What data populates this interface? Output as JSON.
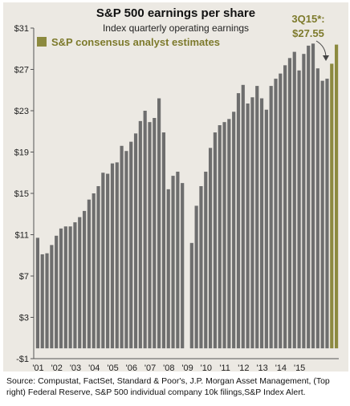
{
  "chart_data": {
    "type": "bar",
    "title": "S&P 500 earnings per share",
    "subtitle": "Index quarterly operating earnings",
    "legend": [
      {
        "label": "S&P consensus analyst estimates",
        "color": "#8c8a3f"
      }
    ],
    "annotation": {
      "line1": "3Q15*:",
      "line2": "$27.55"
    },
    "y_ticks": [
      "$31",
      "$27",
      "$23",
      "$19",
      "$15",
      "$11",
      "$7",
      "$3",
      "-$1"
    ],
    "y_tick_values": [
      31,
      27,
      23,
      19,
      15,
      11,
      7,
      3,
      -1
    ],
    "ylim": [
      -1,
      31
    ],
    "x_ticks": [
      "'01",
      "'02",
      "'03",
      "'04",
      "'05",
      "'06",
      "'07",
      "'08",
      "'09",
      "'10",
      "'11",
      "'12",
      "'13",
      "'14",
      "'15"
    ],
    "series": [
      {
        "values": [
          10.7,
          9.1,
          9.2,
          10.0,
          10.9,
          11.6,
          11.8,
          11.8,
          12.2,
          12.7,
          13.3,
          14.4,
          15.0,
          15.7,
          17.0,
          16.9,
          17.9,
          18.0,
          19.6,
          19.1,
          20.0,
          20.8,
          22.0,
          23.0,
          21.9,
          22.3,
          24.2,
          20.9,
          15.4,
          16.7,
          17.1,
          16.0,
          null,
          10.2,
          13.8,
          15.7,
          17.1,
          19.4,
          20.9,
          21.6,
          21.9,
          22.2,
          22.9,
          24.7,
          25.5,
          23.7,
          24.3,
          25.4,
          24.2,
          23.1,
          25.4,
          26.1,
          26.6,
          27.4,
          28.1,
          28.7,
          26.9,
          28.5,
          29.3,
          29.5,
          27.1,
          25.9,
          26.1
        ],
        "color": "#6e6e6e"
      },
      {
        "values": [
          27.55,
          29.4
        ],
        "color": "#8c8a3f"
      }
    ]
  },
  "source_text": "Source: Compustat, FactSet, Standard & Poor's, J.P. Morgan Asset Management, (Top right) Federal Reserve, S&P 500 individual company 10k filings,S&P Index Alert."
}
